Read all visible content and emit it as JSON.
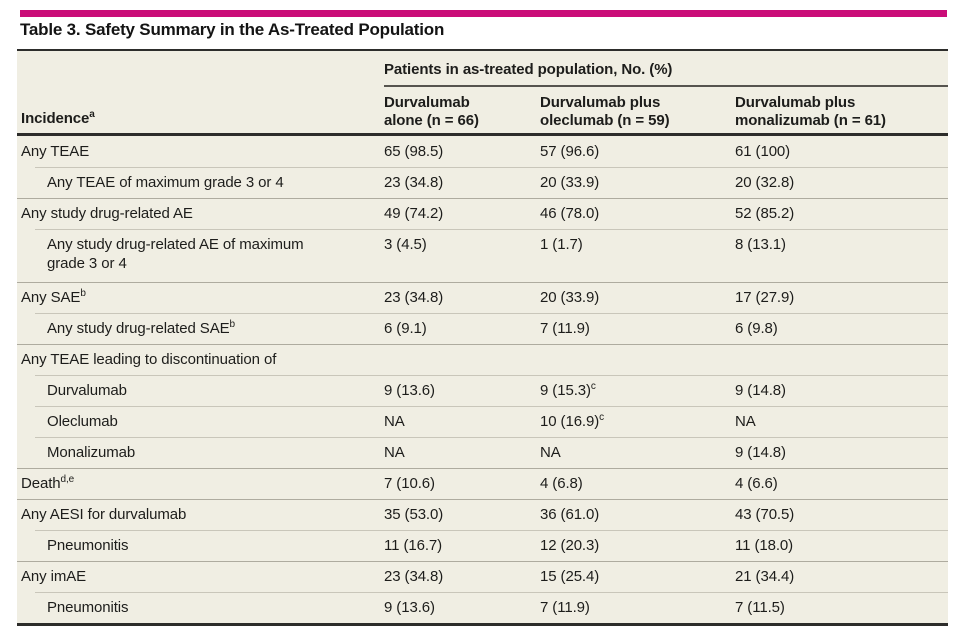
{
  "colors": {
    "accent": "#ca0d78",
    "table_background": "#f0eee3",
    "rule_dark": "#2d2d2b",
    "separator_full": "#aeab9f",
    "separator_inset": "#c9c6ba"
  },
  "title": "Table 3. Safety Summary in the As-Treated Population",
  "table": {
    "row_header": {
      "text": "Incidence",
      "sup": "a"
    },
    "group_header": "Patients in as-treated population, No. (%)",
    "columns": [
      {
        "line1": "Durvalumab",
        "line2": "alone (n = 66)"
      },
      {
        "line1": "Durvalumab plus",
        "line2": "oleclumab (n = 59)"
      },
      {
        "line1": "Durvalumab plus",
        "line2": "monalizumab (n = 61)"
      }
    ],
    "rows": [
      {
        "label": {
          "text": "Any TEAE",
          "sup": ""
        },
        "indent": false,
        "tall": false,
        "cells": [
          {
            "text": "65 (98.5)",
            "sup": ""
          },
          {
            "text": "57 (96.6)",
            "sup": ""
          },
          {
            "text": "61 (100)",
            "sup": ""
          }
        ]
      },
      {
        "label": {
          "text": "Any TEAE of maximum grade 3 or 4",
          "sup": ""
        },
        "indent": true,
        "tall": false,
        "cells": [
          {
            "text": "23 (34.8)",
            "sup": ""
          },
          {
            "text": "20 (33.9)",
            "sup": ""
          },
          {
            "text": "20 (32.8)",
            "sup": ""
          }
        ]
      },
      {
        "label": {
          "text": "Any study drug-related AE",
          "sup": ""
        },
        "indent": false,
        "tall": false,
        "cells": [
          {
            "text": "49 (74.2)",
            "sup": ""
          },
          {
            "text": "46 (78.0)",
            "sup": ""
          },
          {
            "text": "52 (85.2)",
            "sup": ""
          }
        ]
      },
      {
        "label": {
          "text": "Any study drug-related AE of maximum grade 3 or 4",
          "sup": ""
        },
        "indent": true,
        "tall": true,
        "cells": [
          {
            "text": "3 (4.5)",
            "sup": ""
          },
          {
            "text": "1 (1.7)",
            "sup": ""
          },
          {
            "text": "8 (13.1)",
            "sup": ""
          }
        ]
      },
      {
        "label": {
          "text": "Any SAE",
          "sup": "b"
        },
        "indent": false,
        "tall": false,
        "cells": [
          {
            "text": "23 (34.8)",
            "sup": ""
          },
          {
            "text": "20 (33.9)",
            "sup": ""
          },
          {
            "text": "17 (27.9)",
            "sup": ""
          }
        ]
      },
      {
        "label": {
          "text": "Any study drug-related SAE",
          "sup": "b"
        },
        "indent": true,
        "tall": false,
        "cells": [
          {
            "text": "6 (9.1)",
            "sup": ""
          },
          {
            "text": "7 (11.9)",
            "sup": ""
          },
          {
            "text": "6 (9.8)",
            "sup": ""
          }
        ]
      },
      {
        "label": {
          "text": "Any TEAE leading to discontinuation of",
          "sup": ""
        },
        "indent": false,
        "tall": false,
        "cells": [
          {
            "text": "",
            "sup": ""
          },
          {
            "text": "",
            "sup": ""
          },
          {
            "text": "",
            "sup": ""
          }
        ]
      },
      {
        "label": {
          "text": "Durvalumab",
          "sup": ""
        },
        "indent": true,
        "tall": false,
        "cells": [
          {
            "text": "9 (13.6)",
            "sup": ""
          },
          {
            "text": "9 (15.3)",
            "sup": "c"
          },
          {
            "text": "9 (14.8)",
            "sup": ""
          }
        ]
      },
      {
        "label": {
          "text": "Oleclumab",
          "sup": ""
        },
        "indent": true,
        "tall": false,
        "cells": [
          {
            "text": "NA",
            "sup": ""
          },
          {
            "text": "10 (16.9)",
            "sup": "c"
          },
          {
            "text": "NA",
            "sup": ""
          }
        ]
      },
      {
        "label": {
          "text": "Monalizumab",
          "sup": ""
        },
        "indent": true,
        "tall": false,
        "cells": [
          {
            "text": "NA",
            "sup": ""
          },
          {
            "text": "NA",
            "sup": ""
          },
          {
            "text": "9 (14.8)",
            "sup": ""
          }
        ]
      },
      {
        "label": {
          "text": "Death",
          "sup": "d,e"
        },
        "indent": false,
        "tall": false,
        "cells": [
          {
            "text": "7 (10.6)",
            "sup": ""
          },
          {
            "text": "4 (6.8)",
            "sup": ""
          },
          {
            "text": "4 (6.6)",
            "sup": ""
          }
        ]
      },
      {
        "label": {
          "text": "Any AESI for durvalumab",
          "sup": ""
        },
        "indent": false,
        "tall": false,
        "cells": [
          {
            "text": "35 (53.0)",
            "sup": ""
          },
          {
            "text": "36 (61.0)",
            "sup": ""
          },
          {
            "text": "43 (70.5)",
            "sup": ""
          }
        ]
      },
      {
        "label": {
          "text": "Pneumonitis",
          "sup": ""
        },
        "indent": true,
        "tall": false,
        "cells": [
          {
            "text": "11 (16.7)",
            "sup": ""
          },
          {
            "text": "12 (20.3)",
            "sup": ""
          },
          {
            "text": "11 (18.0)",
            "sup": ""
          }
        ]
      },
      {
        "label": {
          "text": "Any imAE",
          "sup": ""
        },
        "indent": false,
        "tall": false,
        "cells": [
          {
            "text": "23 (34.8)",
            "sup": ""
          },
          {
            "text": "15 (25.4)",
            "sup": ""
          },
          {
            "text": "21 (34.4)",
            "sup": ""
          }
        ]
      },
      {
        "label": {
          "text": "Pneumonitis",
          "sup": ""
        },
        "indent": true,
        "tall": false,
        "cells": [
          {
            "text": "9 (13.6)",
            "sup": ""
          },
          {
            "text": "7 (11.9)",
            "sup": ""
          },
          {
            "text": "7 (11.5)",
            "sup": ""
          }
        ]
      }
    ]
  }
}
